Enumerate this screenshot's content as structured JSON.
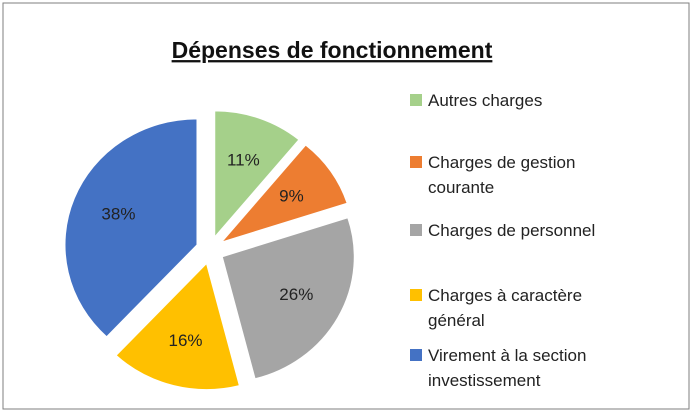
{
  "chart_data": {
    "type": "pie",
    "title": "Dépenses de fonctionnement",
    "categories": [
      "Autres charges",
      "Charges de gestion courante",
      "Charges de personnel",
      "Charges à caractère général",
      "Virement à la section investissement"
    ],
    "values": [
      11,
      9,
      26,
      16,
      38
    ],
    "value_labels": [
      "11%",
      "9%",
      "26%",
      "16%",
      "38%"
    ],
    "colors": [
      "#a5d08a",
      "#ed7d31",
      "#a5a5a5",
      "#ffc000",
      "#4472c4"
    ],
    "legend": "right"
  }
}
